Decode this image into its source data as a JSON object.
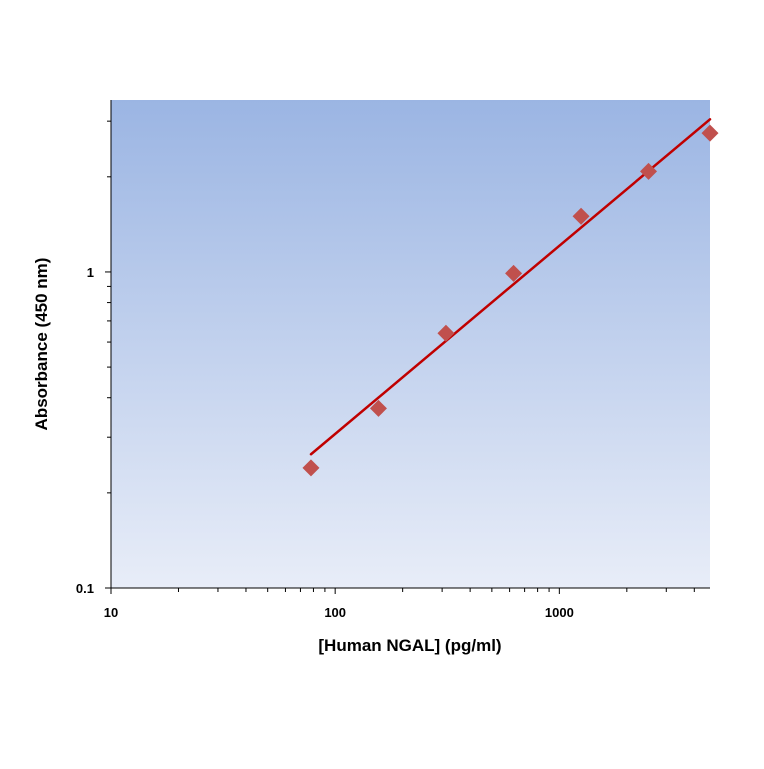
{
  "chart_data": {
    "type": "scatter",
    "title": "",
    "xlabel": "[Human NGAL] (pg/ml)",
    "ylabel": "Absorbance (450 nm)",
    "x_scale": "log",
    "y_scale": "log",
    "xlim": [
      10,
      4700
    ],
    "ylim": [
      0.1,
      3.5
    ],
    "x_ticks": [
      {
        "value": 10,
        "label": "10"
      },
      {
        "value": 100,
        "label": "100"
      },
      {
        "value": 1000,
        "label": "1000"
      }
    ],
    "y_ticks": [
      {
        "value": 0.1,
        "label": "0.1"
      },
      {
        "value": 1,
        "label": "1"
      }
    ],
    "grid": false,
    "legend": "none",
    "series": [
      {
        "kind": "points",
        "marker": "diamond",
        "color": "#c0504d",
        "x": [
          78,
          156,
          312,
          625,
          1250,
          2500,
          5000
        ],
        "y": [
          0.24,
          0.37,
          0.64,
          0.99,
          1.5,
          2.08,
          2.75
        ]
      },
      {
        "kind": "fit-line",
        "color": "#c00000",
        "x": [
          78,
          4700
        ],
        "y": [
          0.265,
          3.04
        ]
      }
    ],
    "plot_background": {
      "top": "#9bb5e3",
      "bottom": "#e8edf8"
    }
  }
}
